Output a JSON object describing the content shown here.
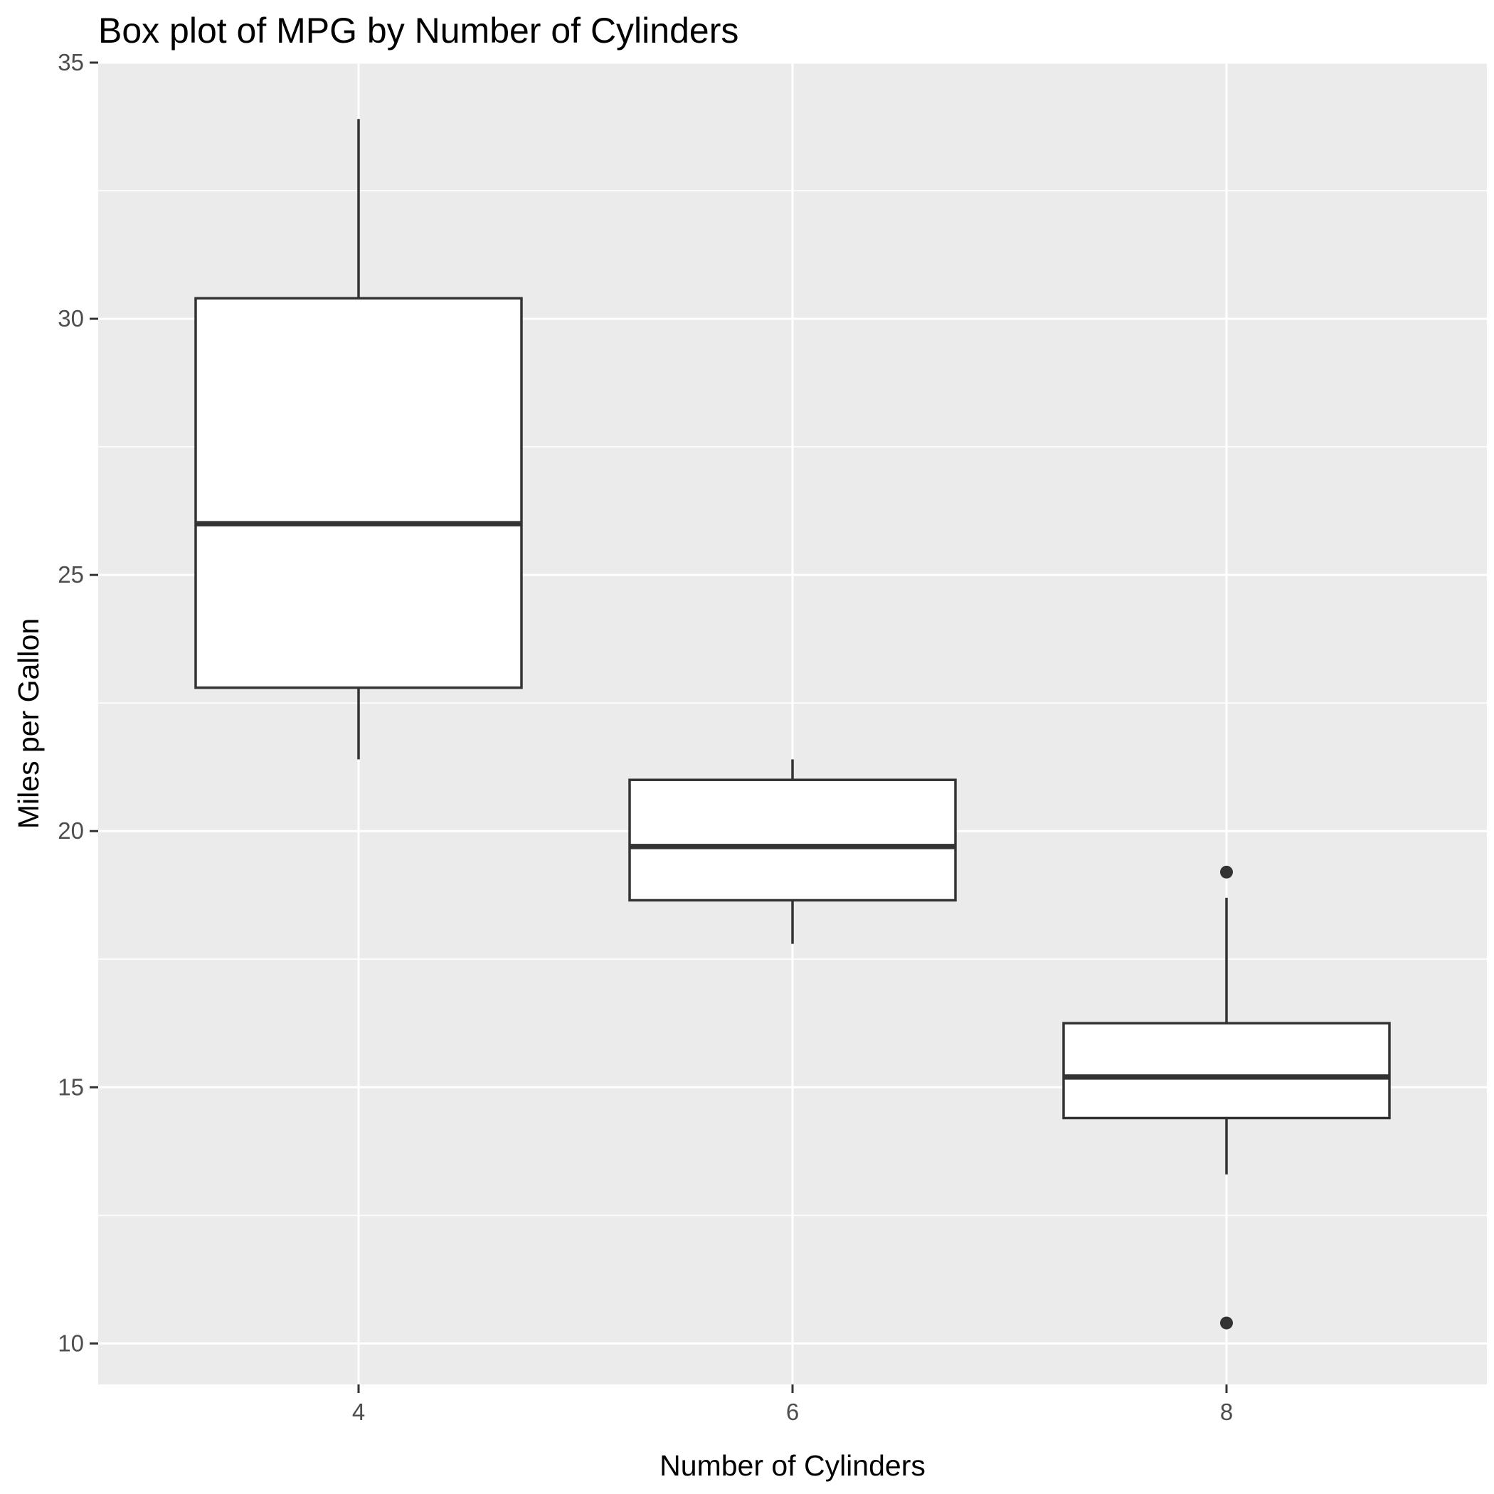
{
  "chart_data": {
    "type": "box",
    "title": "Box plot of MPG by Number of Cylinders",
    "xlabel": "Number of Cylinders",
    "ylabel": "Miles per Gallon",
    "ylim": [
      9.2,
      35.0
    ],
    "y_ticks": [
      "10",
      "15",
      "20",
      "25",
      "30",
      "35"
    ],
    "grid": true,
    "colors": {
      "panel_bg": "#ebebeb",
      "grid_major": "#ffffff",
      "box_fill": "#ffffff",
      "box_stroke": "#333333"
    },
    "boxes": [
      {
        "category": "4",
        "whisker_low": 21.4,
        "q1": 22.8,
        "median": 26.0,
        "q3": 30.4,
        "whisker_high": 33.9,
        "outliers": []
      },
      {
        "category": "6",
        "whisker_low": 17.8,
        "q1": 18.65,
        "median": 19.7,
        "q3": 21.0,
        "whisker_high": 21.4,
        "outliers": []
      },
      {
        "category": "8",
        "whisker_low": 13.3,
        "q1": 14.4,
        "median": 15.2,
        "q3": 16.25,
        "whisker_high": 18.7,
        "outliers": [
          10.4,
          19.2
        ]
      }
    ]
  }
}
